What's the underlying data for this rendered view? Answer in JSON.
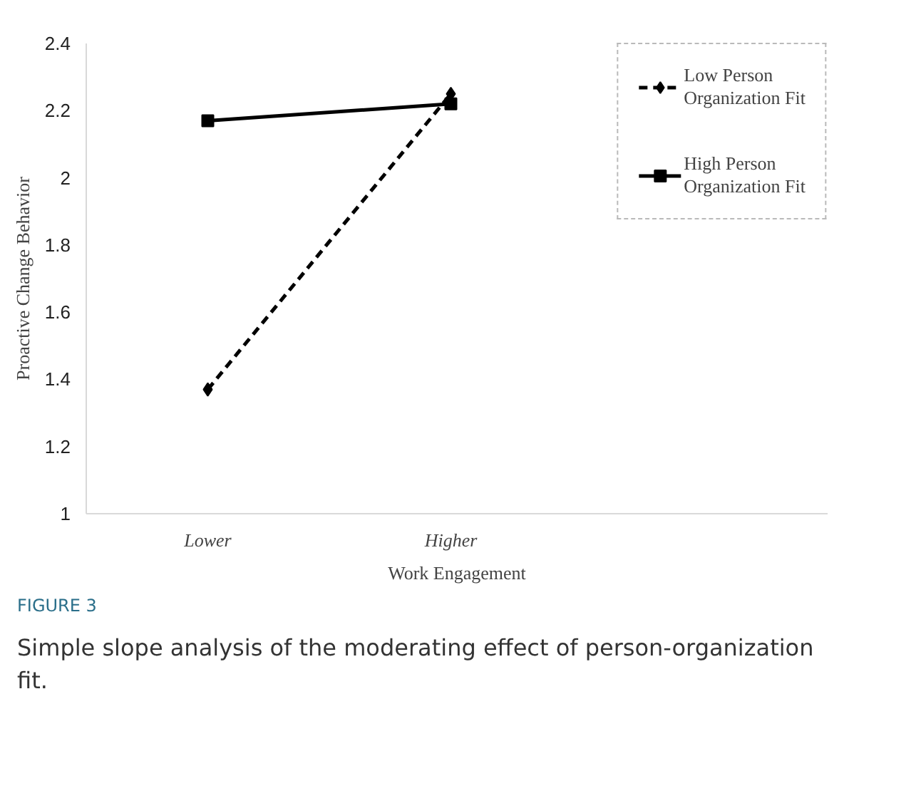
{
  "chart_data": {
    "type": "line",
    "xlabel": "Work Engagement",
    "ylabel": "Proactive Change Behavior",
    "categories": [
      "Lower",
      "Higher"
    ],
    "series": [
      {
        "name": "Low Person Organization Fit",
        "color": "#000000",
        "values": [
          1.37,
          2.25
        ],
        "marker": "diamond",
        "line_style": "dashed"
      },
      {
        "name": "High Person Organization Fit",
        "color": "#000000",
        "values": [
          2.17,
          2.22
        ],
        "marker": "square",
        "line_style": "solid"
      }
    ],
    "ylim": [
      1,
      2.4
    ],
    "yticks": [
      1,
      1.2,
      1.4,
      1.6,
      1.8,
      2,
      2.2,
      2.4
    ],
    "grid": false,
    "legend": "top right",
    "annotations": [
      "FIGURE 3",
      "Simple slope analysis of the moderating effect of person-organization fit."
    ]
  }
}
